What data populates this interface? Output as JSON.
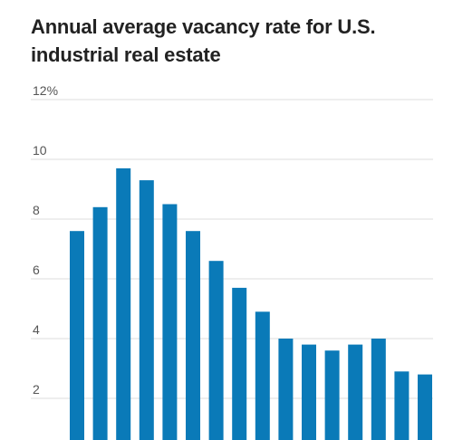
{
  "chart_data": {
    "type": "bar",
    "title": "Annual average vacancy rate for U.S. industrial real estate",
    "xlabel": "",
    "ylabel": "",
    "ylim": [
      0,
      12
    ],
    "yticks": [
      {
        "value": 2,
        "label": "2"
      },
      {
        "value": 4,
        "label": "4"
      },
      {
        "value": 6,
        "label": "6"
      },
      {
        "value": 8,
        "label": "8"
      },
      {
        "value": 10,
        "label": "10"
      },
      {
        "value": 12,
        "label": "12%"
      }
    ],
    "grid": true,
    "categories": [
      "",
      "",
      "",
      "",
      "",
      "",
      "",
      "",
      "",
      "",
      "",
      "",
      "",
      "",
      "",
      ""
    ],
    "values": [
      7.6,
      8.4,
      9.7,
      9.3,
      8.5,
      7.6,
      6.6,
      5.7,
      4.9,
      4.0,
      3.8,
      3.6,
      3.8,
      4.0,
      2.9,
      2.8
    ],
    "colors": {
      "bar": "#0a7ab8",
      "grid": "#dedede",
      "text": "#222222",
      "tick": "#555555"
    }
  }
}
